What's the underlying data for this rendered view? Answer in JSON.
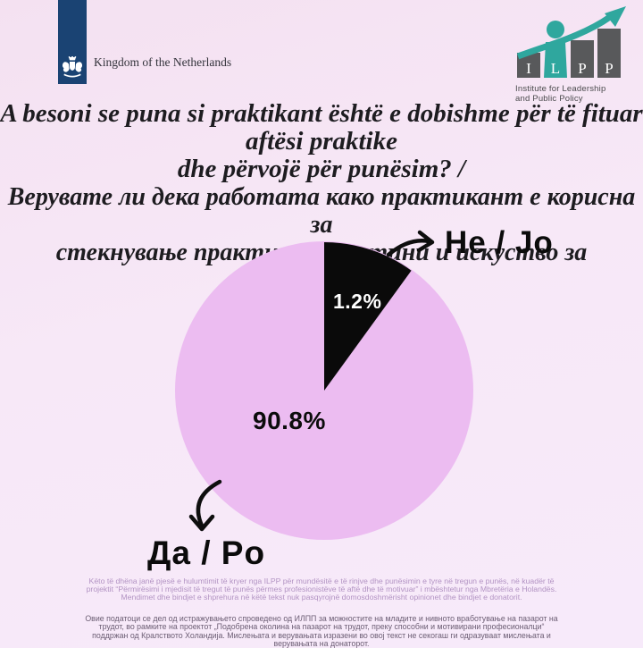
{
  "page": {
    "background_top": "#f4e1f1",
    "background_bottom": "#f7eafa"
  },
  "header": {
    "netherlands": {
      "label": "Kingdom of the Netherlands",
      "bar_color": "#1a4373"
    },
    "ilpp": {
      "letters": [
        "I",
        "L",
        "P",
        "P"
      ],
      "caption_line1": "Institute for Leadership",
      "caption_line2": "and Public Policy",
      "bar_color": "#58595b",
      "accent_color": "#2fa79e"
    }
  },
  "title": {
    "sq_line1": "A besoni se puna si praktikant është e dobishme për të fituar aftësi praktike",
    "sq_line2": "dhe përvojë për punësim? /",
    "mk_line1": "Верувате ли дека работата како практикант е корисна за",
    "mk_line2": "стекнување практични вештини и искуство за вработување?"
  },
  "chart_data": {
    "type": "pie",
    "title": "",
    "slices": [
      {
        "label": "Да / Po",
        "value": 90.8,
        "display": "90.8%",
        "color": "#ecbcf1"
      },
      {
        "label": "Не / Jo",
        "value": 1.2,
        "display": "1.2%",
        "color": "#0a0a0a"
      }
    ],
    "start_angle": "12 o'clock, dark slice clockwise",
    "black_slice_visual_deg": 36,
    "legend_position": "hand-drawn arrow callouts",
    "grid": false
  },
  "footer": {
    "sq": "Këto të dhëna janë pjesë e hulumtimit të kryer nga ILPP për mundësitë e të rinjve dhe punësimin e tyre në tregun e punës, në kuadër të projektit “Përmirësimi i mjedisit të tregut të punës përmes profesionistëve të aftë dhe të motivuar” i mbështetur nga Mbretëria e Holandës. Mendimet dhe bindjet e shprehura në këtë tekst nuk pasqyrojnë domosdoshmërisht opinionet dhe bindjet e donatorit.",
    "mk": "Овие податоци се дел од истражувањето спроведено од ИЛПП за можностите на младите и нивното вработување на пазарот на трудот, во рамките на проектот „Подобрена околина на пазарот на трудот, преку способни и мотивирани професионалци“ поддржан од Кралството Холандија. Мислењата и верувањата изразени во овој текст не секогаш ги одразуваат мислењата и верувањата на донаторот."
  }
}
